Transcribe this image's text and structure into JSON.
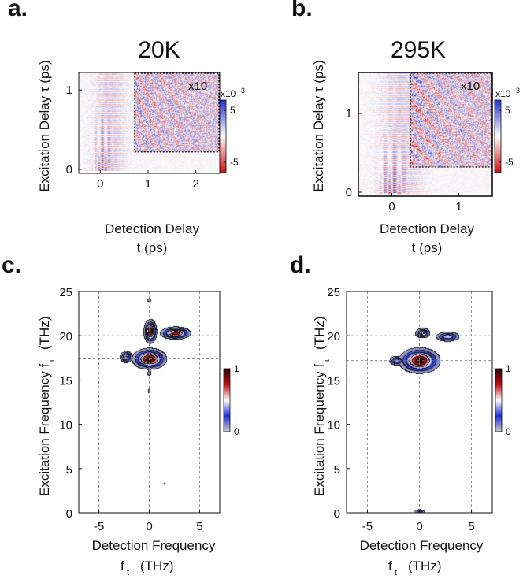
{
  "chart_data": [
    {
      "panel": "a.",
      "type": "heatmap",
      "title": "20K",
      "xlabel": "Detection Delay",
      "xlabel_sub": "t (ps)",
      "ylabel": "Excitation Delay τ (ps)",
      "xlim": [
        -0.45,
        2.5
      ],
      "ylim": [
        -0.05,
        1.22
      ],
      "xticks": [
        0,
        1,
        2
      ],
      "xtick_labels": [
        "0",
        "1",
        "2"
      ],
      "yticks": [
        0,
        1
      ],
      "ytick_labels": [
        "0",
        "1"
      ],
      "inset_label": "x10",
      "inset_region": {
        "t_from": 0.72,
        "t_to": 2.5,
        "tau_from": 0.22,
        "tau_to": 1.22
      },
      "colorbar": {
        "exponent": "x10",
        "exp_power": "-3",
        "ticks": [
          5,
          -5
        ],
        "tick_labels": [
          "5",
          "-5"
        ],
        "range": [
          -7,
          7
        ],
        "colors": [
          "#d01010",
          "#ffffff",
          "#1f2fd0"
        ]
      }
    },
    {
      "panel": "b.",
      "type": "heatmap",
      "title": "295K",
      "xlabel": "Detection Delay",
      "xlabel_sub": "t (ps)",
      "ylabel": "Excitation Delay τ (ps)",
      "xlim": [
        -0.5,
        1.5
      ],
      "ylim": [
        -0.05,
        1.52
      ],
      "xticks": [
        0,
        1
      ],
      "xtick_labels": [
        "0",
        "1"
      ],
      "yticks": [
        0,
        1
      ],
      "ytick_labels": [
        "0",
        "1"
      ],
      "inset_label": "x10",
      "inset_region": {
        "t_from": 0.28,
        "t_to": 1.5,
        "tau_from": 0.32,
        "tau_to": 1.52
      },
      "colorbar": {
        "exponent": "x10",
        "exp_power": "-3",
        "ticks": [
          5,
          -5
        ],
        "tick_labels": [
          "5",
          "-5"
        ],
        "range": [
          -7,
          7
        ],
        "colors": [
          "#d01010",
          "#ffffff",
          "#1f2fd0"
        ]
      }
    },
    {
      "panel": "c.",
      "type": "heatmap",
      "subtype": "contour",
      "xlabel": "Detection Frequency",
      "xlabel_sub": "f",
      "xlabel_sub_index": "t",
      "xlabel_unit": "(THz)",
      "ylabel": "Excitation Frequency f",
      "ylabel_index": "τ",
      "ylabel_unit": "(THz)",
      "xlim": [
        -7,
        7
      ],
      "ylim": [
        0,
        25
      ],
      "xticks": [
        -5,
        0,
        5
      ],
      "xtick_labels": [
        "-5",
        "0",
        "5"
      ],
      "yticks": [
        0,
        5,
        10,
        15,
        20,
        25
      ],
      "ytick_labels": [
        "0",
        "5",
        "10",
        "15",
        "20",
        "25"
      ],
      "reference_lines": {
        "vertical": [
          -5,
          0,
          5
        ],
        "horizontal": [
          17.4,
          20.0
        ]
      },
      "peaks": [
        {
          "x": 0.0,
          "y": 17.4,
          "amp": 1.0,
          "sx": 1.0,
          "sy": 0.7
        },
        {
          "x": 0.1,
          "y": 20.5,
          "amp": 0.95,
          "sx": 0.38,
          "sy": 0.8
        },
        {
          "x": 2.6,
          "y": 20.3,
          "amp": 0.85,
          "sx": 0.9,
          "sy": 0.42
        },
        {
          "x": -2.3,
          "y": 17.6,
          "amp": 0.55,
          "sx": 0.38,
          "sy": 0.42
        },
        {
          "x": 0.0,
          "y": 15.8,
          "amp": 0.12,
          "sx": 0.15,
          "sy": 0.35
        },
        {
          "x": 0.0,
          "y": 13.8,
          "amp": 0.1,
          "sx": 0.12,
          "sy": 0.3
        },
        {
          "x": 0.0,
          "y": 24.0,
          "amp": 0.1,
          "sx": 0.2,
          "sy": 0.25
        },
        {
          "x": 1.5,
          "y": 3.3,
          "amp": 0.06,
          "sx": 0.15,
          "sy": 0.2
        }
      ],
      "colorbar": {
        "ticks": [
          1,
          0
        ],
        "tick_labels": [
          "1",
          "0"
        ],
        "range": [
          0,
          1
        ],
        "colors": [
          "#cccccc",
          "#1f2fd0",
          "#ffffff",
          "#c01010",
          "#240000"
        ]
      }
    },
    {
      "panel": "d.",
      "type": "heatmap",
      "subtype": "contour",
      "xlabel": "Detection Frequency",
      "xlabel_sub": "f",
      "xlabel_sub_index": "t",
      "xlabel_unit": "(THz)",
      "ylabel": "Excitation Frequency f",
      "ylabel_index": "τ",
      "ylabel_unit": "(THz)",
      "xlim": [
        -7,
        7
      ],
      "ylim": [
        0,
        25
      ],
      "xticks": [
        -5,
        0,
        5
      ],
      "xtick_labels": [
        "-5",
        "0",
        "5"
      ],
      "yticks": [
        0,
        5,
        10,
        15,
        20,
        25
      ],
      "ytick_labels": [
        "0",
        "5",
        "10",
        "15",
        "20",
        "25"
      ],
      "reference_lines": {
        "vertical": [
          -5,
          0,
          5
        ],
        "horizontal": [
          17.2,
          20.0
        ]
      },
      "peaks": [
        {
          "x": 0.0,
          "y": 17.2,
          "amp": 1.0,
          "sx": 1.15,
          "sy": 0.85
        },
        {
          "x": 0.3,
          "y": 20.3,
          "amp": 0.55,
          "sx": 0.45,
          "sy": 0.35
        },
        {
          "x": 2.7,
          "y": 19.9,
          "amp": 0.45,
          "sx": 0.75,
          "sy": 0.35
        },
        {
          "x": -2.2,
          "y": 17.2,
          "amp": 0.4,
          "sx": 0.45,
          "sy": 0.35
        },
        {
          "x": 0.0,
          "y": 0.1,
          "amp": 0.3,
          "sx": 0.35,
          "sy": 0.2
        }
      ],
      "colorbar": {
        "ticks": [
          1,
          0
        ],
        "tick_labels": [
          "1",
          "0"
        ],
        "range": [
          0,
          1
        ],
        "colors": [
          "#cccccc",
          "#1f2fd0",
          "#ffffff",
          "#c01010",
          "#240000"
        ]
      }
    }
  ]
}
